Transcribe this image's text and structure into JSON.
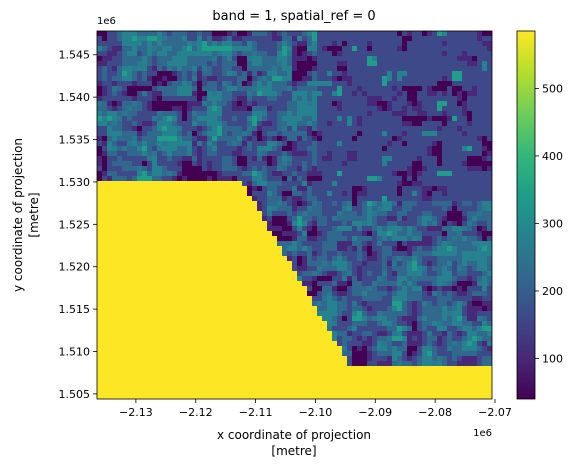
{
  "chart_data": {
    "type": "heatmap",
    "title": "band = 1, spatial_ref = 0",
    "xlabel": "x coordinate of projection",
    "xlabel_unit": "[metre]",
    "ylabel": "y coordinate of projection",
    "ylabel_unit": "[metre]",
    "x_offset_label": "1e6",
    "y_offset_label": "1e6",
    "xlim": [
      -2.1365,
      -2.0705
    ],
    "ylim": [
      1.5044,
      1.5478
    ],
    "x_ticks": [
      {
        "value": -2.13,
        "label": "−2.13"
      },
      {
        "value": -2.12,
        "label": "−2.12"
      },
      {
        "value": -2.11,
        "label": "−2.11"
      },
      {
        "value": -2.1,
        "label": "−2.10"
      },
      {
        "value": -2.09,
        "label": "−2.09"
      },
      {
        "value": -2.08,
        "label": "−2.08"
      },
      {
        "value": -2.07,
        "label": "−2.07"
      }
    ],
    "y_ticks": [
      {
        "value": 1.505,
        "label": "1.505"
      },
      {
        "value": 1.51,
        "label": "1.510"
      },
      {
        "value": 1.515,
        "label": "1.515"
      },
      {
        "value": 1.52,
        "label": "1.520"
      },
      {
        "value": 1.525,
        "label": "1.525"
      },
      {
        "value": 1.53,
        "label": "1.530"
      },
      {
        "value": 1.535,
        "label": "1.535"
      },
      {
        "value": 1.54,
        "label": "1.540"
      },
      {
        "value": 1.545,
        "label": "1.545"
      }
    ],
    "colorbar": {
      "colormap": "viridis",
      "range": [
        40,
        585
      ],
      "ticks": [
        {
          "value": 100,
          "label": "100"
        },
        {
          "value": 200,
          "label": "200"
        },
        {
          "value": 300,
          "label": "300"
        },
        {
          "value": 400,
          "label": "400"
        },
        {
          "value": 500,
          "label": "500"
        }
      ]
    },
    "colormap_stops": [
      "#440154",
      "#482878",
      "#3e4989",
      "#31688e",
      "#26828e",
      "#1f9e89",
      "#35b779",
      "#6ece58",
      "#b5de2b",
      "#fde725"
    ]
  }
}
